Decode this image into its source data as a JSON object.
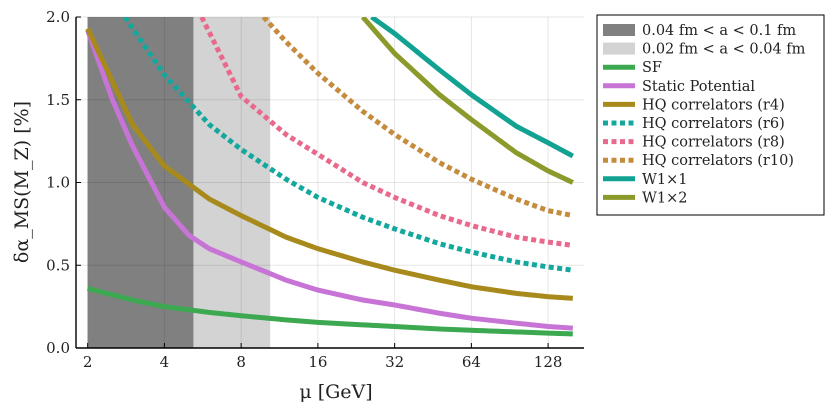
{
  "chart_data": {
    "type": "line",
    "title": "",
    "xlabel": "μ [GeV]",
    "ylabel": "δα_MS(M_Z) [%]",
    "xscale": "log2",
    "xlim": [
      1.8,
      177
    ],
    "ylim": [
      0,
      2.0
    ],
    "xticks": [
      2,
      4,
      8,
      16,
      32,
      64,
      128
    ],
    "xtick_labels": [
      "2",
      "4",
      "8",
      "16",
      "32",
      "64",
      "128"
    ],
    "yticks": [
      0,
      0.5,
      1.0,
      1.5,
      2.0
    ],
    "ytick_labels": [
      "0.0",
      "0.5",
      "1.0",
      "1.5",
      "2.0"
    ],
    "grid": true,
    "legend_position": "outside-right",
    "bands": [
      {
        "name": "0.04 fm < a < 0.1 fm",
        "x_range": [
          2,
          5.2
        ],
        "color": "#808080"
      },
      {
        "name": "0.02 fm < a < 0.04 fm",
        "x_range": [
          5.2,
          10.4
        ],
        "color": "#d3d3d3"
      }
    ],
    "series": [
      {
        "name": "SF",
        "style": "solid",
        "color": "#3ca951",
        "x": [
          2,
          3,
          4,
          6,
          8,
          12,
          16,
          24,
          32,
          48,
          64,
          96,
          128,
          160
        ],
        "y": [
          0.36,
          0.29,
          0.25,
          0.215,
          0.195,
          0.17,
          0.155,
          0.14,
          0.13,
          0.115,
          0.107,
          0.097,
          0.09,
          0.085
        ]
      },
      {
        "name": "Static Potential",
        "style": "solid",
        "color": "#c774d6",
        "x": [
          2,
          2.5,
          3,
          4,
          5,
          6,
          8,
          10,
          12,
          16,
          24,
          32,
          48,
          64,
          96,
          128,
          160
        ],
        "y": [
          1.92,
          1.5,
          1.22,
          0.85,
          0.68,
          0.6,
          0.52,
          0.46,
          0.41,
          0.35,
          0.29,
          0.26,
          0.21,
          0.18,
          0.15,
          0.13,
          0.12
        ]
      },
      {
        "name": "HQ correlators (r4)",
        "style": "solid",
        "color": "#a88a1c",
        "x": [
          2,
          3,
          4,
          6,
          8,
          12,
          16,
          24,
          32,
          48,
          64,
          96,
          128,
          160
        ],
        "y": [
          1.93,
          1.35,
          1.1,
          0.9,
          0.8,
          0.67,
          0.6,
          0.52,
          0.47,
          0.41,
          0.37,
          0.33,
          0.31,
          0.3
        ]
      },
      {
        "name": "HQ correlators (r6)",
        "style": "dotted",
        "color": "#12a89d",
        "x": [
          2.8,
          4,
          6,
          8,
          12,
          16,
          24,
          32,
          48,
          64,
          96,
          128,
          160
        ],
        "y": [
          2.0,
          1.65,
          1.35,
          1.2,
          1.02,
          0.91,
          0.79,
          0.72,
          0.63,
          0.58,
          0.52,
          0.49,
          0.47
        ]
      },
      {
        "name": "HQ correlators (r8)",
        "style": "dotted",
        "color": "#e8698c",
        "x": [
          5.6,
          8,
          12,
          16,
          24,
          32,
          48,
          64,
          96,
          128,
          160
        ],
        "y": [
          2.0,
          1.52,
          1.29,
          1.17,
          1.0,
          0.91,
          0.8,
          0.74,
          0.67,
          0.64,
          0.62
        ]
      },
      {
        "name": "HQ correlators (r10)",
        "style": "dotted",
        "color": "#c48c3c",
        "x": [
          9.8,
          12,
          16,
          24,
          32,
          48,
          64,
          96,
          128,
          160
        ],
        "y": [
          2.0,
          1.85,
          1.66,
          1.43,
          1.29,
          1.12,
          1.02,
          0.9,
          0.83,
          0.8
        ]
      },
      {
        "name": "W1×1",
        "style": "solid",
        "color": "#12a292",
        "x": [
          26,
          32,
          48,
          64,
          96,
          128,
          160
        ],
        "y": [
          2.0,
          1.9,
          1.68,
          1.53,
          1.34,
          1.24,
          1.16
        ]
      },
      {
        "name": "W1×2",
        "style": "solid",
        "color": "#8b9a2a",
        "x": [
          24,
          32,
          48,
          64,
          96,
          128,
          160
        ],
        "y": [
          2.0,
          1.78,
          1.53,
          1.38,
          1.18,
          1.07,
          1.0
        ]
      }
    ]
  }
}
